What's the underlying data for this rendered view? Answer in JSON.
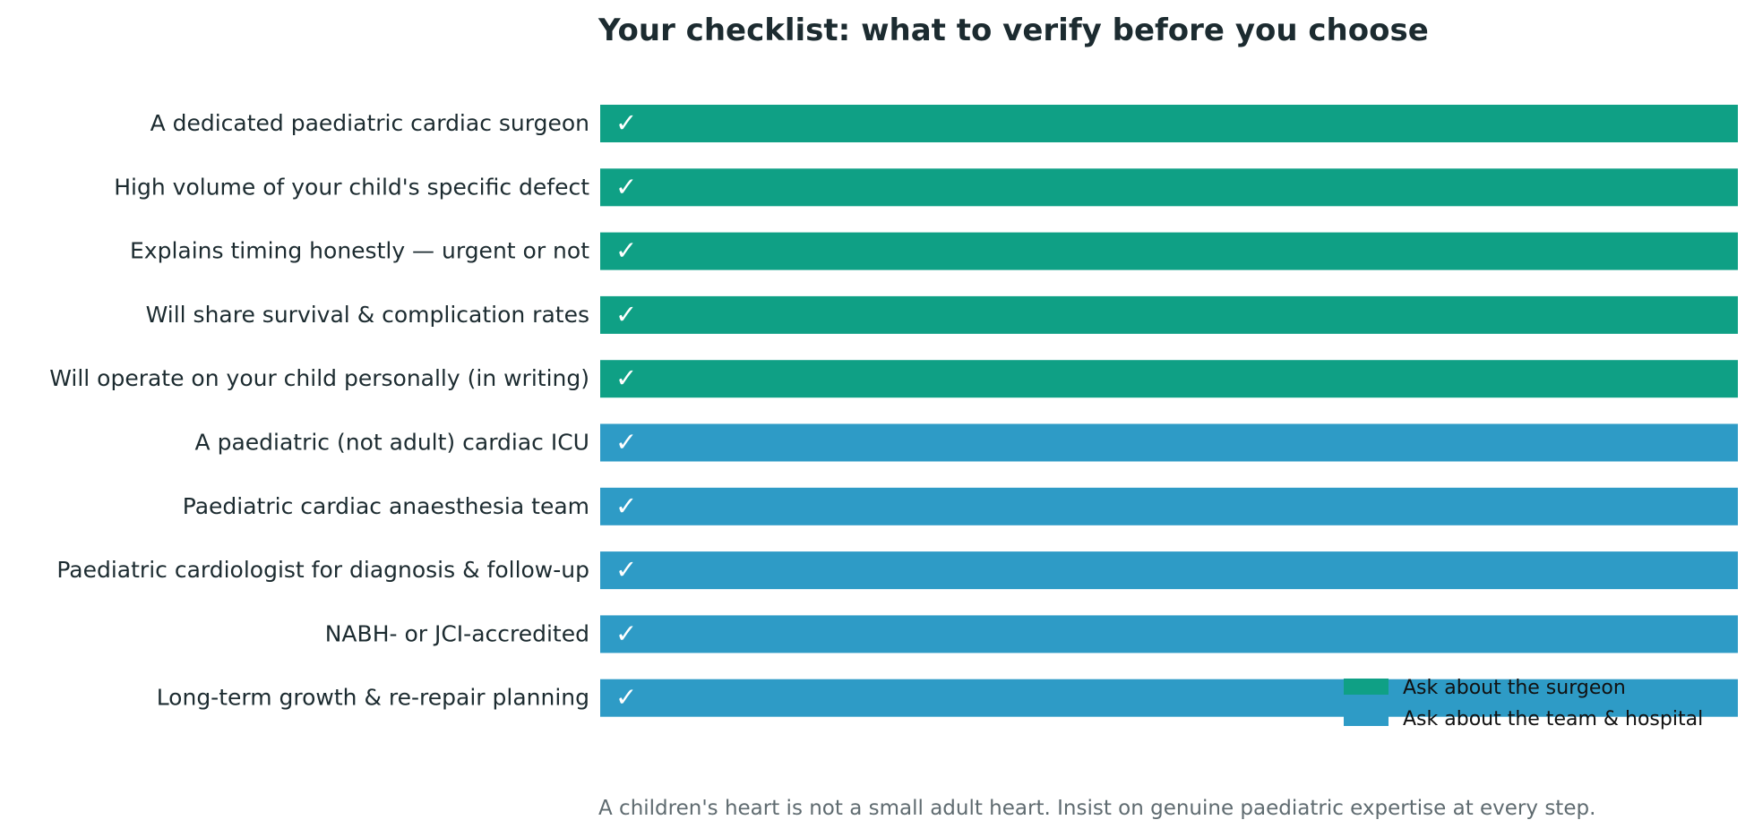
{
  "chart_data": {
    "type": "bar",
    "orientation": "horizontal",
    "title": "Your checklist: what to verify before you choose",
    "footnote": "A children's heart is not a small adult heart. Insist on genuine paediatric expertise at every step.",
    "bar_label": "✓",
    "categories": [
      "A dedicated paediatric cardiac surgeon",
      "High volume of your child's specific defect",
      "Explains timing honestly — urgent or not",
      "Will share survival & complication rates",
      "Will operate on your child personally (in writing)",
      "A paediatric (not adult) cardiac ICU",
      "Paediatric cardiac anaesthesia team",
      "Paediatric cardiologist for diagnosis & follow-up",
      "NABH- or JCI-accredited",
      "Long-term growth & re-repair planning"
    ],
    "values": [
      1,
      1,
      1,
      1,
      1,
      1,
      1,
      1,
      1,
      1
    ],
    "groups": [
      0,
      0,
      0,
      0,
      0,
      1,
      1,
      1,
      1,
      1
    ],
    "series": [
      {
        "name": "Ask about the surgeon",
        "color": "#0fa085"
      },
      {
        "name": "Ask about the team & hospital",
        "color": "#2e9bc6"
      }
    ],
    "xlim": [
      0,
      1
    ],
    "grid": false,
    "legend_position": "lower-right",
    "text_color": "#1c2b30",
    "footnote_color": "#5f6b70"
  }
}
